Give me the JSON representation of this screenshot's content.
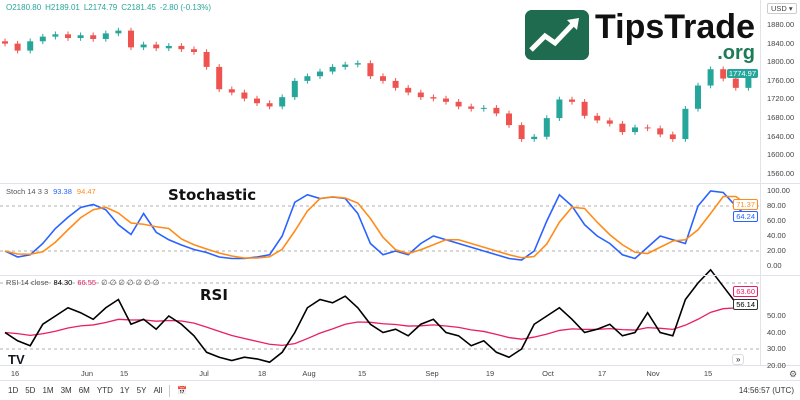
{
  "header": {
    "open": "O2180.80",
    "high": "H2189.01",
    "low": "L2174.79",
    "close": "C2181.45",
    "change": "-2.80 (-0.13%)",
    "currency": "USD"
  },
  "logo": {
    "name": "TipsTrade",
    "domain": ".org"
  },
  "annotations": {
    "stochastic": "Stochastic",
    "rsi": "RSI"
  },
  "stoch": {
    "label": "Stoch 14 3 3",
    "k_value": "93.38",
    "d_value": "94.47",
    "k_last": "64.24",
    "d_last": "71.37",
    "ticks": [
      "100.00",
      "80.00",
      "60.00",
      "40.00",
      "20.00",
      "0.00"
    ]
  },
  "rsi": {
    "label": "RSI 14 close",
    "value": "84.30",
    "ma_value": "66.55",
    "extras": "∅ ∅ ∅ ∅ ∅ ∅ ∅",
    "last": "56.14",
    "ma_last": "63.60",
    "ticks": [
      "50.00",
      "40.00",
      "30.00",
      "20.00"
    ]
  },
  "price": {
    "last": "1774.97",
    "ticks": [
      "1880.00",
      "1840.00",
      "1800.00",
      "1760.00",
      "1720.00",
      "1680.00",
      "1640.00",
      "1600.00",
      "1560.00"
    ]
  },
  "time_axis": [
    "16",
    "Jun",
    "15",
    "Jul",
    "18",
    "Aug",
    "15",
    "Sep",
    "19",
    "Oct",
    "17",
    "Nov",
    "15"
  ],
  "toolbar": {
    "ranges": [
      "1D",
      "5D",
      "1M",
      "3M",
      "6M",
      "YTD",
      "1Y",
      "5Y",
      "All"
    ],
    "clock": "14:56:57 (UTC)"
  },
  "colors": {
    "up": "#26a69a",
    "down": "#ef5350",
    "k": "#2962ff",
    "d": "#ff8c1a",
    "rsi": "#000000",
    "rsi_ma": "#e91e63"
  },
  "chart_data": {
    "type": "candlestick",
    "ylim": [
      1560,
      1880
    ],
    "closes": [
      1840,
      1825,
      1845,
      1855,
      1860,
      1852,
      1858,
      1850,
      1862,
      1868,
      1832,
      1838,
      1830,
      1835,
      1828,
      1822,
      1790,
      1742,
      1735,
      1722,
      1712,
      1705,
      1725,
      1760,
      1770,
      1780,
      1790,
      1795,
      1798,
      1770,
      1760,
      1745,
      1735,
      1725,
      1722,
      1715,
      1705,
      1700,
      1702,
      1690,
      1665,
      1635,
      1640,
      1680,
      1720,
      1715,
      1685,
      1675,
      1668,
      1650,
      1660,
      1658,
      1645,
      1635,
      1700,
      1750,
      1785,
      1765,
      1745,
      1775
    ],
    "stoch_k": [
      20,
      12,
      15,
      30,
      50,
      65,
      78,
      82,
      75,
      55,
      42,
      70,
      45,
      35,
      28,
      22,
      18,
      12,
      10,
      10,
      12,
      15,
      40,
      85,
      95,
      90,
      92,
      90,
      70,
      30,
      15,
      20,
      15,
      30,
      40,
      35,
      30,
      25,
      20,
      15,
      10,
      8,
      20,
      60,
      95,
      80,
      55,
      40,
      30,
      15,
      10,
      25,
      40,
      35,
      30,
      80,
      100,
      98,
      80,
      64
    ],
    "rsi_values": [
      40,
      35,
      32,
      45,
      50,
      55,
      52,
      48,
      55,
      60,
      45,
      48,
      42,
      50,
      45,
      38,
      28,
      25,
      23,
      25,
      24,
      22,
      28,
      40,
      55,
      60,
      58,
      62,
      55,
      45,
      40,
      42,
      38,
      45,
      48,
      40,
      38,
      32,
      35,
      28,
      25,
      30,
      45,
      50,
      55,
      48,
      40,
      42,
      45,
      38,
      40,
      52,
      40,
      38,
      60,
      70,
      78,
      68,
      58,
      56
    ]
  }
}
